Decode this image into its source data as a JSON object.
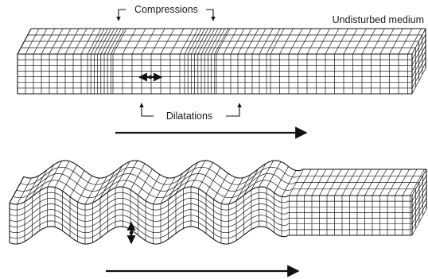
{
  "labels": {
    "compressions": "Compressions",
    "undisturbed_medium": "Undisturbed medium",
    "dilatations": "Dilatations"
  },
  "colors": {
    "ink": "#111111",
    "background": "#ffffff"
  },
  "icons": {
    "direction_arrow": "right-arrow-icon",
    "particle_motion_horizontal": "double-headed-horizontal-arrow-icon",
    "particle_motion_vertical": "double-headed-vertical-arrow-icon"
  }
}
